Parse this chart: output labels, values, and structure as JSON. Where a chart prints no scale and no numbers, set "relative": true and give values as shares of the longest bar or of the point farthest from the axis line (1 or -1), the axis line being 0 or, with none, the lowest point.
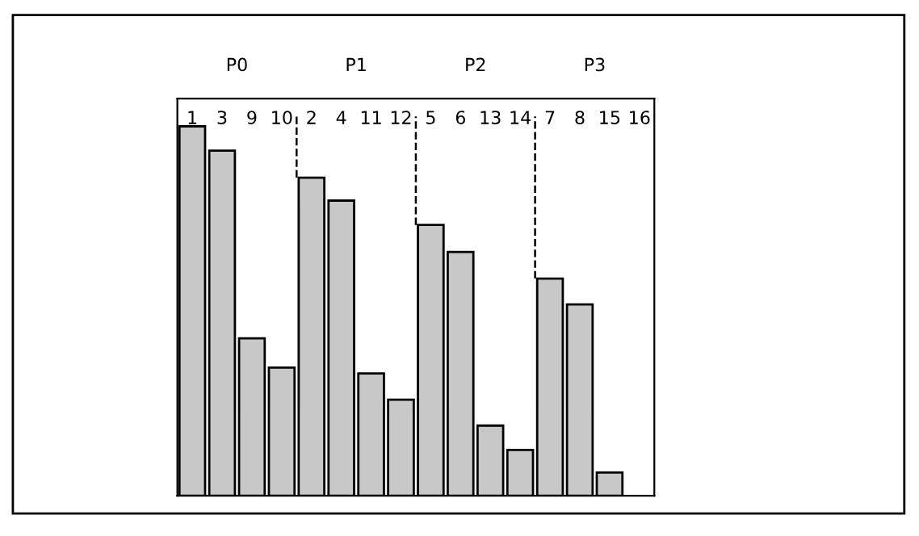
{
  "chart_data": {
    "type": "bar",
    "relative": true,
    "categories": [
      "1",
      "3",
      "9",
      "10",
      "2",
      "4",
      "11",
      "12",
      "5",
      "6",
      "13",
      "14",
      "7",
      "8",
      "15",
      "16"
    ],
    "values": [
      1,
      0.934,
      0.426,
      0.347,
      0.861,
      0.799,
      0.331,
      0.26,
      0.733,
      0.66,
      0.19,
      0.124,
      0.588,
      0.518,
      0.063,
      0
    ],
    "color": "#c8c8c8",
    "annotations": [
      "P0",
      "P1",
      "P2",
      "P3"
    ],
    "grid": false,
    "legend": false
  }
}
